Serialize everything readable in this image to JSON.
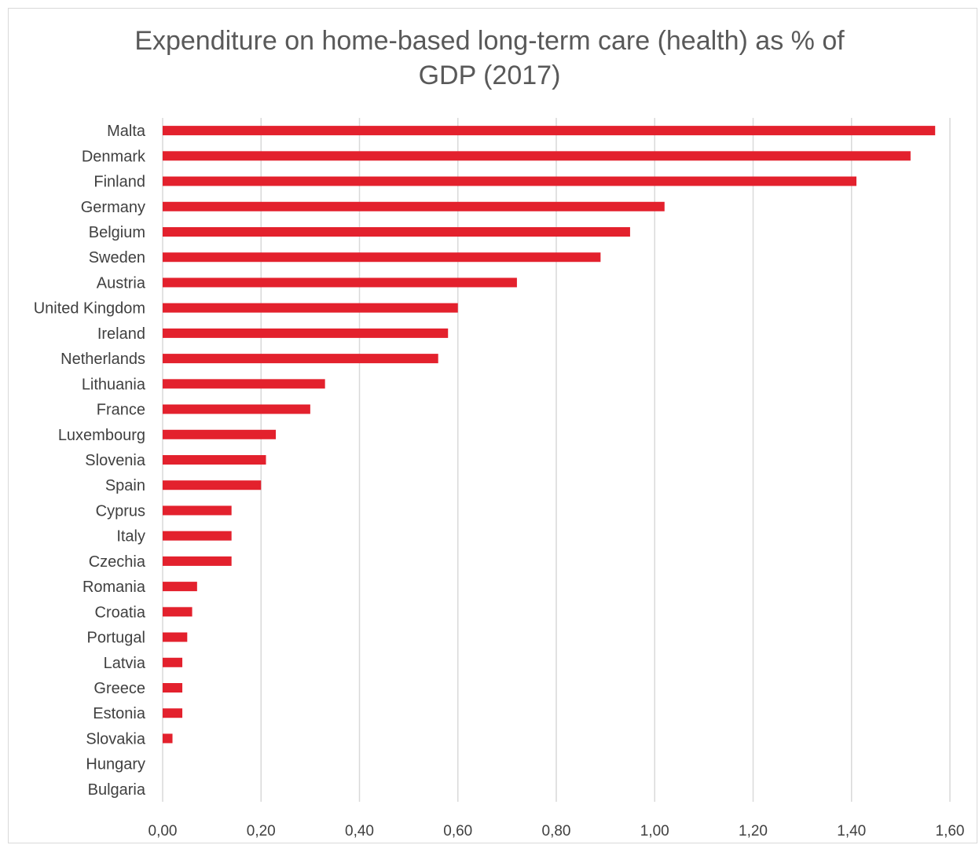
{
  "chart_data": {
    "type": "bar",
    "orientation": "horizontal",
    "title": "Expenditure on home-based long-term care (health) as % of GDP (2017)",
    "xlabel": "",
    "ylabel": "",
    "categories": [
      "Malta",
      "Denmark",
      "Finland",
      "Germany",
      "Belgium",
      "Sweden",
      "Austria",
      "United Kingdom",
      "Ireland",
      "Netherlands",
      "Lithuania",
      "France",
      "Luxembourg",
      "Slovenia",
      "Spain",
      "Cyprus",
      "Italy",
      "Czechia",
      "Romania",
      "Croatia",
      "Portugal",
      "Latvia",
      "Greece",
      "Estonia",
      "Slovakia",
      "Hungary",
      "Bulgaria"
    ],
    "values": [
      1.57,
      1.52,
      1.41,
      1.02,
      0.95,
      0.89,
      0.72,
      0.6,
      0.58,
      0.56,
      0.33,
      0.3,
      0.23,
      0.21,
      0.2,
      0.14,
      0.14,
      0.14,
      0.07,
      0.06,
      0.05,
      0.04,
      0.04,
      0.04,
      0.02,
      0,
      0
    ],
    "xlim": [
      0,
      1.6
    ],
    "xticks": [
      0,
      0.2,
      0.4,
      0.6,
      0.8,
      1.0,
      1.2,
      1.4,
      1.6
    ],
    "xtick_labels": [
      "0,00",
      "0,20",
      "0,40",
      "0,60",
      "0,80",
      "1,00",
      "1,20",
      "1,40",
      "1,60"
    ],
    "grid": "vertical",
    "bar_color": "#e3212d",
    "legend": "none"
  }
}
